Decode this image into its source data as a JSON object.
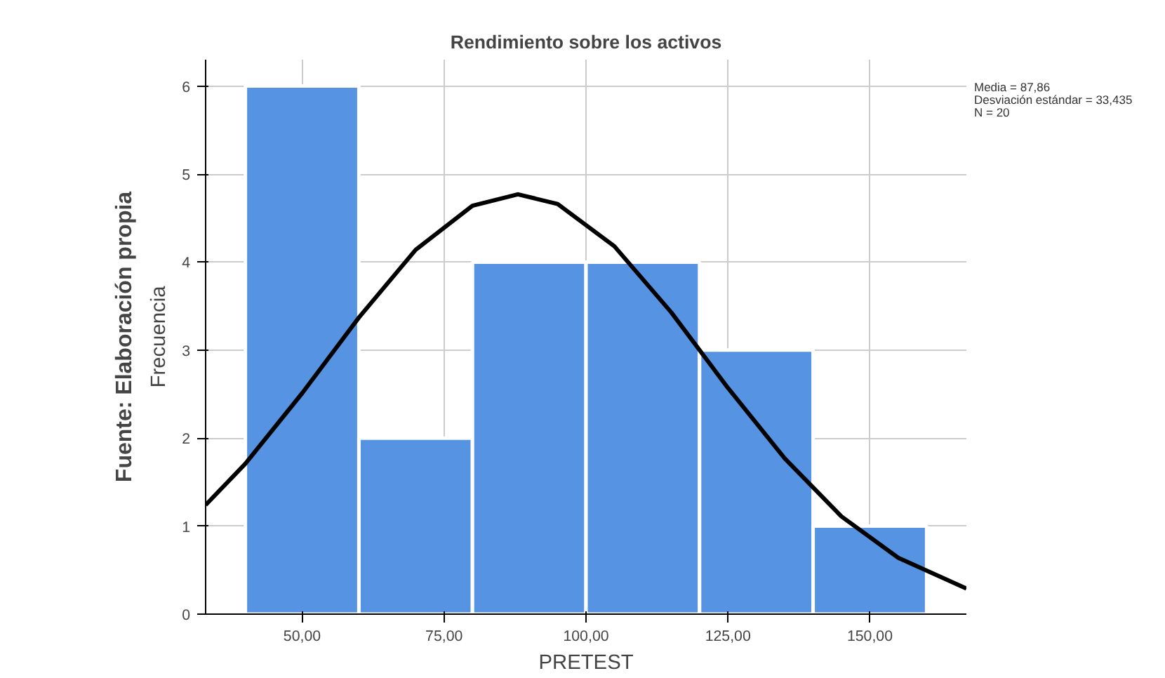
{
  "chart_data": {
    "type": "histogram",
    "title": "Rendimiento sobre los activos",
    "xlabel": "PRETEST",
    "ylabel": "Frecuencia",
    "annotations": [
      "Fuente: Elaboración propia",
      "Media = 87,86",
      "Desviación estándar = 33,435",
      "N = 20"
    ],
    "xlim": [
      33,
      167
    ],
    "ylim": [
      0,
      6.3
    ],
    "xticks": [
      {
        "value": 50,
        "label": "50,00"
      },
      {
        "value": 75,
        "label": "75,00"
      },
      {
        "value": 100,
        "label": "100,00"
      },
      {
        "value": 125,
        "label": "125,00"
      },
      {
        "value": 150,
        "label": "150,00"
      }
    ],
    "yticks": [
      0,
      1,
      2,
      3,
      4,
      5,
      6
    ],
    "grid": true,
    "series": [
      {
        "color": "#5694e3",
        "bins": [
          40,
          60,
          80,
          100,
          120,
          140,
          160
        ],
        "values": [
          6,
          2,
          4,
          4,
          3,
          1
        ]
      },
      {
        "type": "line",
        "color": "#000000",
        "x": [
          33,
          40,
          50,
          60,
          70,
          80,
          88,
          95,
          105,
          115,
          125,
          135,
          145,
          155,
          167
        ],
        "values": [
          1.24,
          1.71,
          2.51,
          3.37,
          4.14,
          4.64,
          4.77,
          4.66,
          4.18,
          3.43,
          2.57,
          1.77,
          1.11,
          0.64,
          0.29
        ]
      }
    ]
  }
}
